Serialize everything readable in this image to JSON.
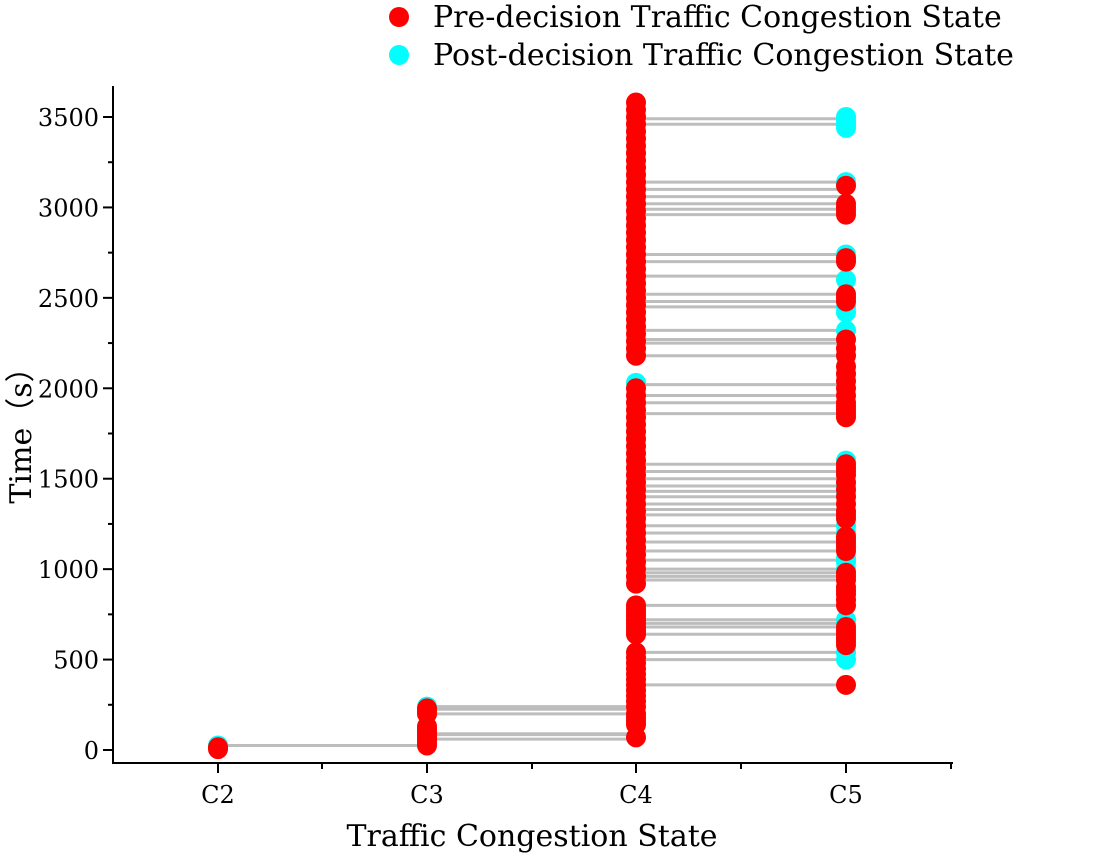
{
  "chart_data": {
    "type": "scatter",
    "title": "",
    "xlabel": "Traffic Congestion State",
    "ylabel": "Time（s）",
    "categories": [
      "C2",
      "C3",
      "C4",
      "C5"
    ],
    "ylim": [
      -60,
      3700
    ],
    "yticks": [
      0,
      500,
      1000,
      1500,
      2000,
      2500,
      3000,
      3500
    ],
    "grid": false,
    "legend": {
      "position": "top-right",
      "entries": [
        {
          "label": "Pre-decision Traffic Congestion State",
          "color": "#ff0000"
        },
        {
          "label": "Post-decision Traffic Congestion State",
          "color": "#00ffff"
        }
      ]
    },
    "colors": {
      "pre": "#ff0000",
      "post": "#00ffff",
      "transition_line": "#bdbdbd"
    },
    "transitions": [
      {
        "from": "C2",
        "to": "C3",
        "times": [
          25
        ]
      },
      {
        "from": "C3",
        "to": "C4",
        "times": [
          60,
          85,
          90,
          200,
          225,
          240
        ]
      },
      {
        "from": "C4",
        "to": "C5",
        "times": [
          360,
          500,
          540,
          640,
          680,
          700,
          720,
          800,
          940,
          960,
          980,
          1000,
          1050,
          1100,
          1150,
          1200,
          1240,
          1300,
          1330,
          1360,
          1400,
          1430,
          1460,
          1500,
          1540,
          1580,
          1860,
          1920,
          1960,
          2020,
          2180,
          2250,
          2270,
          2320,
          2450,
          2480,
          2520,
          2620,
          2700,
          2740,
          2960,
          2990,
          3020,
          3060,
          3100,
          3140,
          3460,
          3490
        ]
      }
    ],
    "series": [
      {
        "name": "Pre-decision Traffic Congestion State",
        "color": "#ff0000",
        "points": [
          {
            "category": "C2",
            "times": [
              5,
              15
            ]
          },
          {
            "category": "C3",
            "times": [
              25,
              40,
              55,
              70,
              85,
              100,
              115,
              130,
              200,
              215,
              230
            ]
          },
          {
            "category": "C4",
            "times": [
              70,
              140,
              160,
              180,
              200,
              240,
              270,
              300,
              330,
              360,
              390,
              420,
              450,
              480,
              510,
              540,
              640,
              660,
              680,
              700,
              720,
              740,
              760,
              780,
              800,
              920,
              960,
              1000,
              1040,
              1080,
              1120,
              1160,
              1200,
              1240,
              1280,
              1320,
              1360,
              1400,
              1440,
              1480,
              1520,
              1560,
              1600,
              1640,
              1680,
              1720,
              1760,
              1800,
              1840,
              1880,
              1920,
              1960,
              2000,
              2180,
              2220,
              2260,
              2300,
              2340,
              2380,
              2420,
              2460,
              2500,
              2540,
              2580,
              2620,
              2660,
              2700,
              2740,
              2780,
              2820,
              2860,
              2900,
              2940,
              2980,
              3020,
              3060,
              3100,
              3140,
              3180,
              3220,
              3260,
              3300,
              3340,
              3380,
              3420,
              3460,
              3500,
              3540,
              3580
            ]
          },
          {
            "category": "C5",
            "times": [
              360,
              580,
              600,
              620,
              640,
              660,
              680,
              800,
              830,
              860,
              880,
              900,
              940,
              960,
              980,
              1100,
              1120,
              1140,
              1160,
              1180,
              1280,
              1300,
              1320,
              1360,
              1400,
              1440,
              1480,
              1520,
              1540,
              1560,
              1580,
              1840,
              1860,
              1880,
              1900,
              1920,
              1960,
              2000,
              2040,
              2080,
              2120,
              2180,
              2220,
              2270,
              2480,
              2500,
              2520,
              2700,
              2720,
              2960,
              2980,
              3000,
              3020,
              3120
            ]
          }
        ]
      },
      {
        "name": "Post-decision Traffic Congestion State",
        "color": "#00ffff",
        "points": [
          {
            "category": "C2",
            "times": [
              25
            ]
          },
          {
            "category": "C3",
            "times": [
              240
            ]
          },
          {
            "category": "C4",
            "times": [
              2030
            ]
          },
          {
            "category": "C5",
            "times": [
              500,
              540,
              700,
              720,
              1000,
              1040,
              1060,
              1200,
              1240,
              1420,
              1460,
              1600,
              2320,
              2420,
              2450,
              2600,
              2740,
              3140,
              3440,
              3460,
              3480,
              3500
            ]
          }
        ]
      }
    ]
  }
}
